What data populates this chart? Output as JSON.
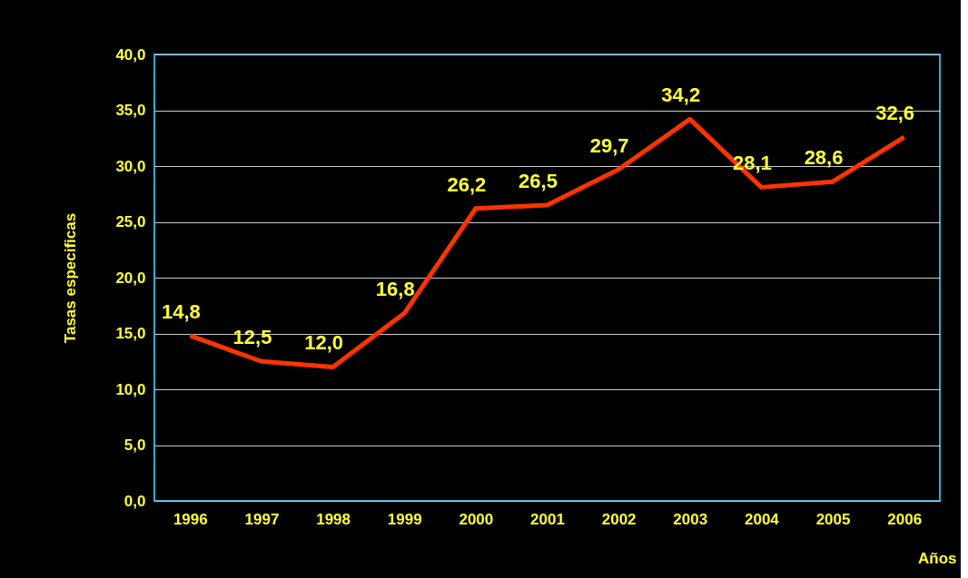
{
  "chart_data": {
    "type": "line",
    "ylabel": "Tasas especificas",
    "xlabel": "Años",
    "categories": [
      "1996",
      "1997",
      "1998",
      "1999",
      "2000",
      "2001",
      "2002",
      "2003",
      "2004",
      "2005",
      "2006"
    ],
    "series": [
      {
        "color": "#ff3300",
        "values": [
          14.8,
          12.5,
          12.0,
          16.8,
          26.2,
          26.5,
          29.7,
          34.2,
          28.1,
          28.6,
          32.6
        ],
        "value_labels": [
          "14,8",
          "12,5",
          "12,0",
          "16,8",
          "26,2",
          "26,5",
          "29,7",
          "34,2",
          "28,1",
          "28,6",
          "32,6"
        ]
      }
    ],
    "ylim": [
      0,
      40
    ],
    "yticks": [
      {
        "value": 0,
        "label": "0,0"
      },
      {
        "value": 5,
        "label": "5,0"
      },
      {
        "value": 10,
        "label": "10,0"
      },
      {
        "value": 15,
        "label": "15,0"
      },
      {
        "value": 20,
        "label": "20,0"
      },
      {
        "value": 25,
        "label": "25,0"
      },
      {
        "value": 30,
        "label": "30,0"
      },
      {
        "value": 35,
        "label": "35,0"
      },
      {
        "value": 40,
        "label": "40,0"
      }
    ],
    "grid": "y",
    "marker": "none",
    "line_style": "solid"
  }
}
